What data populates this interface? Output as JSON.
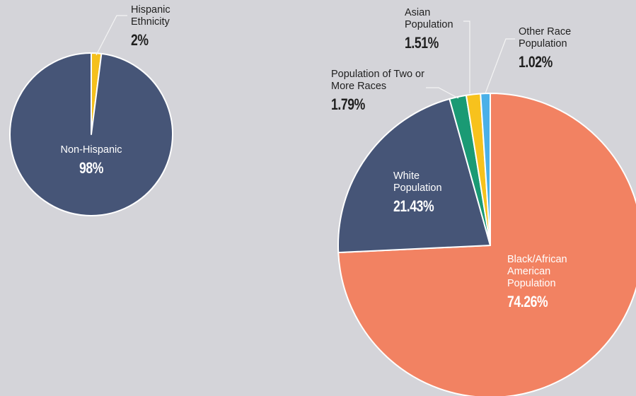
{
  "chart_data": [
    {
      "type": "pie",
      "categories": [
        "Hispanic Ethnicity",
        "Non-Hispanic"
      ],
      "values": [
        2,
        98
      ],
      "value_labels": [
        "2%",
        "98%"
      ],
      "colors": [
        "#f5c01c",
        "#465577"
      ]
    },
    {
      "type": "pie",
      "categories": [
        "Black/African American Population",
        "White Population",
        "Population of Two or More Races",
        "Asian Population",
        "Other Race Population"
      ],
      "values": [
        74.26,
        21.43,
        1.79,
        1.51,
        1.02
      ],
      "value_labels": [
        "74.26%",
        "21.43%",
        "1.79%",
        "1.51%",
        "1.02%"
      ],
      "colors": [
        "#f28262",
        "#465577",
        "#1a9a74",
        "#f7c21d",
        "#4ab0e8"
      ]
    }
  ]
}
